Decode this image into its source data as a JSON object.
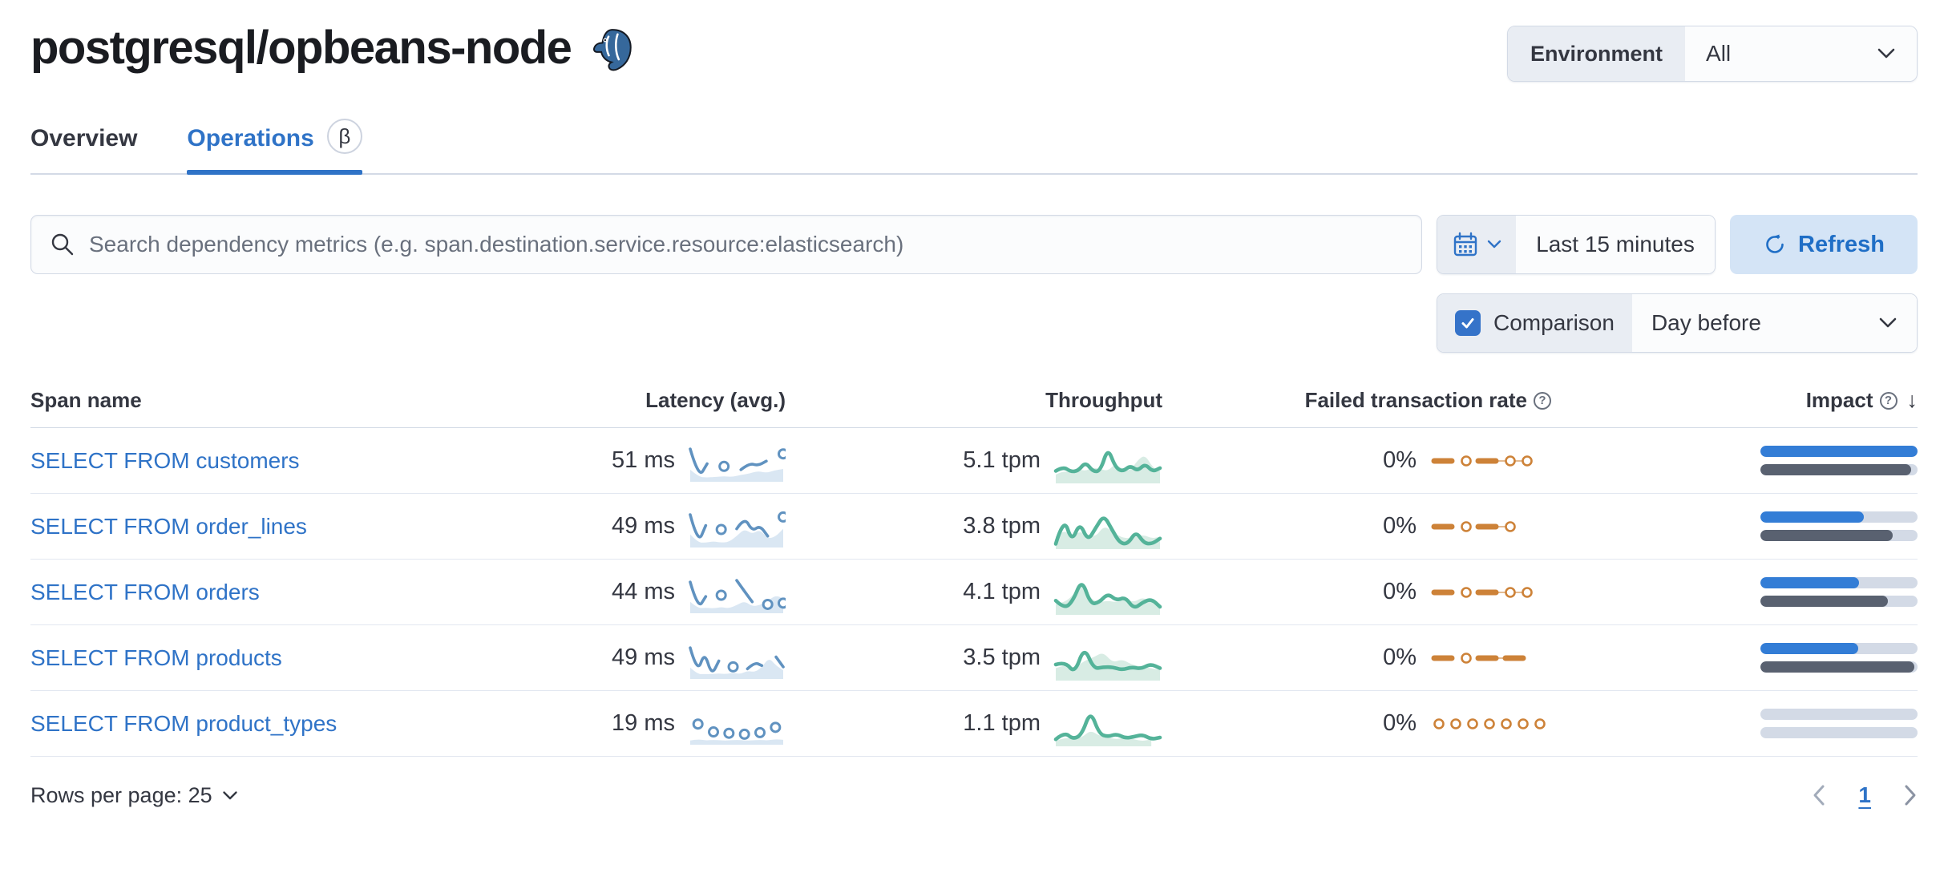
{
  "header": {
    "title": "postgresql/opbeans-node",
    "logo": "postgresql-elephant-icon"
  },
  "environment": {
    "label": "Environment",
    "value": "All"
  },
  "tabs": {
    "overview": "Overview",
    "operations": "Operations",
    "beta": "β"
  },
  "search": {
    "placeholder": "Search dependency metrics (e.g. span.destination.service.resource:elasticsearch)"
  },
  "time_picker": {
    "range": "Last 15 minutes",
    "refresh": "Refresh"
  },
  "comparison": {
    "label": "Comparison",
    "checked": true,
    "value": "Day before"
  },
  "table": {
    "headers": {
      "span": "Span name",
      "latency": "Latency (avg.)",
      "throughput": "Throughput",
      "failed": "Failed transaction rate",
      "impact": "Impact"
    },
    "rows": [
      {
        "span_name": "SELECT FROM customers",
        "latency": "51 ms",
        "throughput": "5.1 tpm",
        "failed_rate": "0%",
        "impact": {
          "current": 100,
          "previous": 96
        },
        "latency_spark": {
          "cur": [
            0.95,
            0.06,
            0.5,
            null,
            0.42,
            null,
            0.32,
            0.52,
            0.44,
            0.58,
            null,
            0.8
          ],
          "prev": [
            0.32,
            0.1,
            0.08,
            0.1,
            0.12,
            0.1,
            0.16,
            0.2,
            0.28,
            0.22,
            0.3,
            0.34
          ]
        },
        "throughput_spark": {
          "cur": [
            0.3,
            0.42,
            0.28,
            0.3,
            0.55,
            0.28,
            0.3,
            0.95,
            0.4,
            0.28,
            0.45,
            0.3,
            0.5,
            0.28,
            0.38
          ],
          "prev": [
            0.2,
            0.3,
            0.25,
            0.35,
            0.3,
            0.4,
            0.35,
            0.3,
            0.5,
            0.35,
            0.3,
            0.6,
            0.75,
            0.4,
            0.3
          ]
        },
        "failed_spark": {
          "tokens": [
            "dash",
            "dot",
            "dash",
            "dot",
            "dot"
          ],
          "connect": [
            2,
            4
          ]
        }
      },
      {
        "span_name": "SELECT FROM order_lines",
        "latency": "49 ms",
        "throughput": "3.8 tpm",
        "failed_rate": "0%",
        "impact": {
          "current": 66,
          "previous": 84
        },
        "latency_spark": {
          "cur": [
            0.95,
            0.06,
            0.62,
            null,
            0.5,
            null,
            0.52,
            0.88,
            0.45,
            0.62,
            0.3,
            null,
            0.88
          ],
          "prev": [
            0.35,
            0.1,
            0.1,
            0.14,
            0.1,
            0.12,
            0.3,
            0.52,
            0.36,
            0.5,
            0.22,
            0.28,
            0.52
          ]
        },
        "throughput_spark": {
          "cur": [
            0.1,
            0.85,
            0.15,
            0.7,
            0.18,
            0.55,
            0.9,
            0.5,
            0.12,
            0.1,
            0.45,
            0.12,
            0.1,
            0.25
          ],
          "prev": [
            0.3,
            0.5,
            0.3,
            0.45,
            0.35,
            0.3,
            0.6,
            0.45,
            0.3,
            0.25,
            0.3,
            0.35,
            0.25,
            0.3
          ]
        },
        "failed_spark": {
          "tokens": [
            "dash",
            "dot",
            "dash",
            "dot"
          ],
          "connect": [
            2,
            3
          ]
        }
      },
      {
        "span_name": "SELECT FROM orders",
        "latency": "44 ms",
        "throughput": "4.1 tpm",
        "failed_rate": "0%",
        "impact": {
          "current": 63,
          "previous": 81
        },
        "latency_spark": {
          "cur": [
            0.9,
            0.08,
            0.46,
            null,
            0.5,
            null,
            0.95,
            0.62,
            0.3,
            null,
            0.22,
            null,
            0.26
          ],
          "prev": [
            0.3,
            0.1,
            0.12,
            0.1,
            0.14,
            0.1,
            0.2,
            0.32,
            0.16,
            0.2,
            0.32,
            0.5,
            0.4
          ]
        },
        "throughput_spark": {
          "cur": [
            0.35,
            0.12,
            0.35,
            0.95,
            0.25,
            0.3,
            0.55,
            0.35,
            0.45,
            0.12,
            0.3,
            0.4,
            0.18
          ],
          "prev": [
            0.25,
            0.3,
            0.5,
            0.85,
            0.4,
            0.3,
            0.35,
            0.3,
            0.4,
            0.3,
            0.45,
            0.3,
            0.25
          ]
        },
        "failed_spark": {
          "tokens": [
            "dash",
            "dot",
            "dash",
            "dot",
            "dot"
          ],
          "connect": [
            2,
            4
          ]
        }
      },
      {
        "span_name": "SELECT FROM products",
        "latency": "49 ms",
        "throughput": "3.5 tpm",
        "failed_rate": "0%",
        "impact": {
          "current": 62,
          "previous": 98
        },
        "latency_spark": {
          "cur": [
            0.9,
            0.12,
            0.78,
            0.06,
            0.5,
            null,
            0.32,
            null,
            0.26,
            0.46,
            0.36,
            null,
            0.62,
            0.32
          ],
          "prev": [
            0.3,
            0.1,
            0.1,
            0.1,
            0.12,
            0.1,
            0.14,
            0.1,
            0.2,
            0.16,
            0.3,
            0.6,
            0.36,
            0.22
          ]
        },
        "throughput_spark": {
          "cur": [
            0.4,
            0.48,
            0.15,
            0.9,
            0.28,
            0.33,
            0.33,
            0.25,
            0.33,
            0.28,
            0.42,
            0.3
          ],
          "prev": [
            0.3,
            0.4,
            0.3,
            0.5,
            0.6,
            0.75,
            0.45,
            0.55,
            0.4,
            0.35,
            0.3,
            0.25
          ]
        },
        "failed_spark": {
          "tokens": [
            "dash",
            "dot",
            "dash",
            "dash"
          ],
          "connect": [
            2,
            3
          ]
        }
      },
      {
        "span_name": "SELECT FROM product_types",
        "latency": "19 ms",
        "throughput": "1.1 tpm",
        "failed_rate": "0%",
        "impact": {
          "current": 0,
          "previous": 0
        },
        "latency_spark": {
          "cur": [
            null,
            0.58,
            null,
            0.34,
            null,
            0.3,
            null,
            0.27,
            null,
            0.32,
            null,
            0.48,
            null
          ],
          "prev": [
            0.08,
            0.12,
            0.08,
            0.1,
            0.08,
            0.08,
            0.1,
            0.08,
            0.08,
            0.1,
            0.08,
            0.12,
            0.1
          ]
        },
        "throughput_spark": {
          "cur": [
            0.15,
            0.35,
            0.15,
            0.28,
            0.95,
            0.3,
            0.22,
            0.3,
            0.18,
            0.22,
            0.28,
            0.15,
            0.2
          ],
          "prev": [
            0.1,
            0.2,
            0.15,
            0.2,
            0.4,
            0.25,
            0.2,
            0.15,
            0.2,
            0.15,
            0.1,
            0.15
          ]
        },
        "failed_spark": {
          "tokens": [
            "dot",
            "dot",
            "dot",
            "dot",
            "dot",
            "dot",
            "dot"
          ],
          "connect": null
        }
      }
    ]
  },
  "pagination": {
    "rows_per_page": "Rows per page: 25",
    "page": "1"
  },
  "colors": {
    "accent": "#2f73c7",
    "latency_line": "#6092c0",
    "latency_fill": "#dae7f3",
    "throughput_line": "#54b399",
    "throughput_fill": "#d8ece4",
    "failed_line": "#cd8238",
    "impact_current": "#337dd6",
    "impact_previous": "#596170",
    "bar_track": "#d3dae6",
    "refresh_bg": "#d4e4f6",
    "refresh_text": "#1f6ec6"
  }
}
